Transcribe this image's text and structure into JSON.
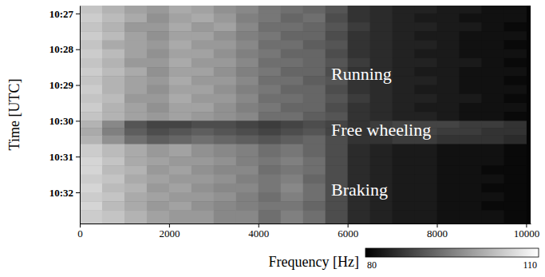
{
  "chart_data": {
    "type": "heatmap",
    "x_label": "Frequency [Hz]",
    "y_label": "Time [UTC]",
    "annotations": [
      "Running",
      "Free wheeling",
      "Braking"
    ],
    "xlim": [
      0,
      10100
    ],
    "xticks": [
      0,
      2000,
      4000,
      6000,
      8000,
      10000
    ],
    "ylim": [
      626.78,
      632.87
    ],
    "yticks": [
      {
        "value": 627,
        "label": "10:27"
      },
      {
        "value": 628,
        "label": "10:28"
      },
      {
        "value": 629,
        "label": "10:29"
      },
      {
        "value": 630,
        "label": "10:30"
      },
      {
        "value": 631,
        "label": "10:31"
      },
      {
        "value": 632,
        "label": "10:32"
      }
    ],
    "x_edges": [
      0,
      500,
      1000,
      1500,
      2000,
      2500,
      3000,
      3500,
      4000,
      4500,
      5000,
      5500,
      6000,
      6500,
      7000,
      7500,
      8000,
      8500,
      9000,
      9500,
      10000
    ],
    "y_edges": [
      626.78,
      627,
      627.25,
      627.5,
      627.75,
      628,
      628.25,
      628.5,
      628.75,
      629,
      629.25,
      629.5,
      629.75,
      630,
      630.2,
      630.4,
      630.65,
      631,
      631.25,
      631.5,
      631.75,
      632,
      632.25,
      632.5,
      632.87
    ],
    "cells": [
      [
        103,
        101,
        99,
        98,
        100,
        99,
        97,
        96,
        94,
        93,
        92,
        90,
        86,
        85,
        84,
        84,
        83,
        83,
        82,
        82
      ],
      [
        104,
        102,
        100,
        97,
        99,
        100,
        98,
        95,
        94,
        92,
        93,
        89,
        86,
        85,
        84,
        83,
        83,
        82,
        82,
        82
      ],
      [
        103,
        101,
        98,
        98,
        100,
        98,
        99,
        96,
        93,
        93,
        92,
        90,
        87,
        85,
        84,
        84,
        83,
        83,
        82,
        81
      ],
      [
        104,
        102,
        99,
        97,
        99,
        99,
        97,
        95,
        94,
        92,
        92,
        89,
        86,
        85,
        84,
        83,
        83,
        82,
        82,
        82
      ],
      [
        103,
        100,
        99,
        98,
        100,
        98,
        98,
        96,
        93,
        93,
        91,
        90,
        86,
        85,
        84,
        84,
        83,
        82,
        82,
        81
      ],
      [
        104,
        102,
        99,
        97,
        99,
        99,
        97,
        95,
        94,
        92,
        92,
        89,
        86,
        85,
        84,
        83,
        83,
        82,
        82,
        82
      ],
      [
        103,
        101,
        98,
        98,
        100,
        98,
        98,
        96,
        93,
        93,
        92,
        90,
        87,
        85,
        84,
        84,
        83,
        83,
        82,
        81
      ],
      [
        104,
        102,
        100,
        97,
        99,
        99,
        97,
        95,
        94,
        92,
        92,
        89,
        86,
        85,
        84,
        83,
        83,
        82,
        82,
        82
      ],
      [
        103,
        101,
        99,
        98,
        100,
        98,
        98,
        96,
        93,
        93,
        91,
        90,
        86,
        85,
        84,
        84,
        83,
        82,
        82,
        81
      ],
      [
        104,
        101,
        99,
        97,
        99,
        99,
        97,
        95,
        94,
        92,
        92,
        89,
        86,
        85,
        84,
        83,
        83,
        82,
        82,
        82
      ],
      [
        103,
        102,
        98,
        98,
        100,
        98,
        98,
        96,
        93,
        93,
        92,
        90,
        87,
        85,
        84,
        84,
        83,
        83,
        82,
        81
      ],
      [
        104,
        101,
        99,
        97,
        99,
        99,
        97,
        95,
        94,
        92,
        92,
        89,
        86,
        85,
        84,
        83,
        83,
        82,
        82,
        82
      ],
      [
        103,
        101,
        99,
        98,
        99,
        98,
        97,
        96,
        93,
        93,
        91,
        90,
        86,
        85,
        84,
        84,
        83,
        82,
        82,
        81
      ],
      [
        101,
        96,
        90,
        88,
        88,
        89,
        89,
        88,
        87,
        88,
        89,
        88,
        86,
        87,
        88,
        88,
        88,
        87,
        87,
        86
      ],
      [
        100,
        95,
        91,
        89,
        90,
        91,
        90,
        89,
        88,
        89,
        90,
        88,
        86,
        87,
        88,
        88,
        87,
        87,
        86,
        86
      ],
      [
        101,
        97,
        93,
        91,
        92,
        93,
        92,
        91,
        90,
        91,
        92,
        89,
        86,
        86,
        87,
        87,
        86,
        86,
        86,
        85
      ],
      [
        104,
        102,
        100,
        98,
        99,
        97,
        96,
        95,
        93,
        94,
        92,
        89,
        85,
        84,
        83,
        83,
        82,
        82,
        82,
        81
      ],
      [
        105,
        103,
        100,
        99,
        98,
        98,
        97,
        95,
        94,
        95,
        93,
        89,
        85,
        84,
        83,
        83,
        82,
        82,
        82,
        81
      ],
      [
        105,
        102,
        101,
        98,
        99,
        97,
        96,
        96,
        93,
        94,
        93,
        89,
        85,
        84,
        83,
        83,
        82,
        82,
        81,
        81
      ],
      [
        104,
        103,
        100,
        99,
        98,
        98,
        97,
        95,
        94,
        95,
        92,
        89,
        85,
        84,
        83,
        83,
        82,
        82,
        82,
        81
      ],
      [
        105,
        102,
        101,
        98,
        99,
        97,
        96,
        96,
        94,
        96,
        93,
        89,
        85,
        84,
        83,
        83,
        82,
        82,
        81,
        81
      ],
      [
        104,
        103,
        100,
        99,
        98,
        98,
        97,
        95,
        93,
        95,
        93,
        89,
        85,
        84,
        83,
        83,
        82,
        82,
        82,
        81
      ],
      [
        105,
        102,
        100,
        98,
        99,
        97,
        96,
        95,
        94,
        94,
        92,
        89,
        85,
        84,
        83,
        83,
        82,
        82,
        81,
        81
      ],
      [
        104,
        103,
        101,
        99,
        98,
        98,
        96,
        96,
        93,
        95,
        93,
        89,
        85,
        84,
        83,
        83,
        82,
        82,
        82,
        81
      ]
    ],
    "colorbar": {
      "range": [
        80,
        110
      ],
      "ticks": [
        80,
        110
      ]
    }
  }
}
